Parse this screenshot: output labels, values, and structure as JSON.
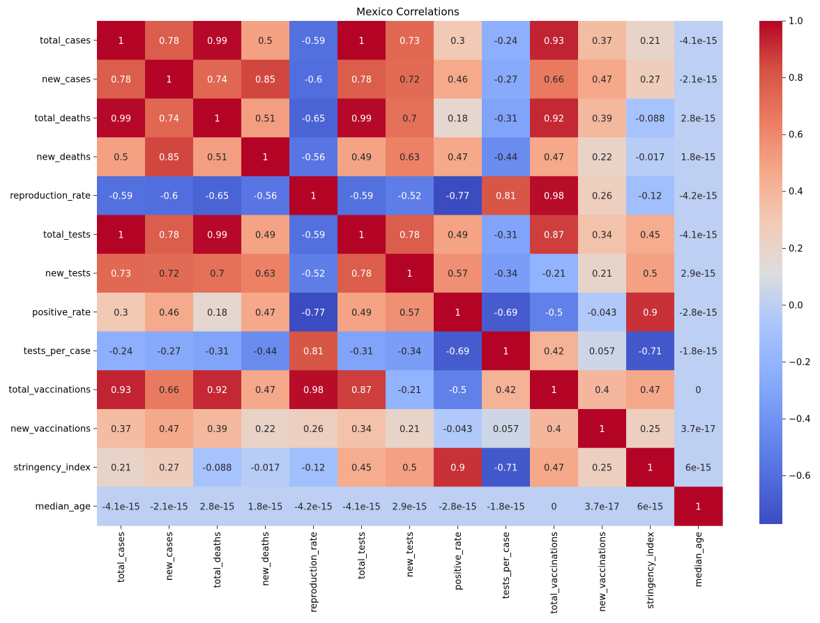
{
  "chart_data": {
    "type": "heatmap",
    "title": "Mexico Correlations",
    "labels": [
      "total_cases",
      "new_cases",
      "total_deaths",
      "new_deaths",
      "reproduction_rate",
      "total_tests",
      "new_tests",
      "positive_rate",
      "tests_per_case",
      "total_vaccinations",
      "new_vaccinations",
      "stringency_index",
      "median_age"
    ],
    "values": [
      [
        1,
        0.78,
        0.99,
        0.5,
        -0.59,
        1,
        0.73,
        0.3,
        -0.24,
        0.93,
        0.37,
        0.21,
        -4.1e-15
      ],
      [
        0.78,
        1,
        0.74,
        0.85,
        -0.6,
        0.78,
        0.72,
        0.46,
        -0.27,
        0.66,
        0.47,
        0.27,
        -2.1e-15
      ],
      [
        0.99,
        0.74,
        1,
        0.51,
        -0.65,
        0.99,
        0.7,
        0.18,
        -0.31,
        0.92,
        0.39,
        -0.088,
        2.8e-15
      ],
      [
        0.5,
        0.85,
        0.51,
        1,
        -0.56,
        0.49,
        0.63,
        0.47,
        -0.44,
        0.47,
        0.22,
        -0.017,
        1.8e-15
      ],
      [
        -0.59,
        -0.6,
        -0.65,
        -0.56,
        1,
        -0.59,
        -0.52,
        -0.77,
        0.81,
        0.98,
        0.26,
        -0.12,
        -4.2e-15
      ],
      [
        1,
        0.78,
        0.99,
        0.49,
        -0.59,
        1,
        0.78,
        0.49,
        -0.31,
        0.87,
        0.34,
        0.45,
        -4.1e-15
      ],
      [
        0.73,
        0.72,
        0.7,
        0.63,
        -0.52,
        0.78,
        1,
        0.57,
        -0.34,
        -0.21,
        0.21,
        0.5,
        2.9e-15
      ],
      [
        0.3,
        0.46,
        0.18,
        0.47,
        -0.77,
        0.49,
        0.57,
        1,
        -0.69,
        -0.5,
        -0.043,
        0.9,
        -2.8e-15
      ],
      [
        -0.24,
        -0.27,
        -0.31,
        -0.44,
        0.81,
        -0.31,
        -0.34,
        -0.69,
        1,
        0.42,
        0.057,
        -0.71,
        -1.8e-15
      ],
      [
        0.93,
        0.66,
        0.92,
        0.47,
        0.98,
        0.87,
        -0.21,
        -0.5,
        0.42,
        1,
        0.4,
        0.47,
        0
      ],
      [
        0.37,
        0.47,
        0.39,
        0.22,
        0.26,
        0.34,
        0.21,
        -0.043,
        0.057,
        0.4,
        1,
        0.25,
        3.7e-17
      ],
      [
        0.21,
        0.27,
        -0.088,
        -0.017,
        -0.12,
        0.45,
        0.5,
        0.9,
        -0.71,
        0.47,
        0.25,
        1,
        6e-15
      ],
      [
        -4.1e-15,
        -2.1e-15,
        2.8e-15,
        1.8e-15,
        -4.2e-15,
        -4.1e-15,
        2.9e-15,
        -2.8e-15,
        -1.8e-15,
        0,
        3.7e-17,
        6e-15,
        1
      ]
    ],
    "annotations": [
      [
        "1",
        "0.78",
        "0.99",
        "0.5",
        "-0.59",
        "1",
        "0.73",
        "0.3",
        "-0.24",
        "0.93",
        "0.37",
        "0.21",
        "-4.1e-15"
      ],
      [
        "0.78",
        "1",
        "0.74",
        "0.85",
        "-0.6",
        "0.78",
        "0.72",
        "0.46",
        "-0.27",
        "0.66",
        "0.47",
        "0.27",
        "-2.1e-15"
      ],
      [
        "0.99",
        "0.74",
        "1",
        "0.51",
        "-0.65",
        "0.99",
        "0.7",
        "0.18",
        "-0.31",
        "0.92",
        "0.39",
        "-0.088",
        "2.8e-15"
      ],
      [
        "0.5",
        "0.85",
        "0.51",
        "1",
        "-0.56",
        "0.49",
        "0.63",
        "0.47",
        "-0.44",
        "0.47",
        "0.22",
        "-0.017",
        "1.8e-15"
      ],
      [
        "-0.59",
        "-0.6",
        "-0.65",
        "-0.56",
        "1",
        "-0.59",
        "-0.52",
        "-0.77",
        "0.81",
        "0.98",
        "0.26",
        "-0.12",
        "-4.2e-15"
      ],
      [
        "1",
        "0.78",
        "0.99",
        "0.49",
        "-0.59",
        "1",
        "0.78",
        "0.49",
        "-0.31",
        "0.87",
        "0.34",
        "0.45",
        "-4.1e-15"
      ],
      [
        "0.73",
        "0.72",
        "0.7",
        "0.63",
        "-0.52",
        "0.78",
        "1",
        "0.57",
        "-0.34",
        "-0.21",
        "0.21",
        "0.5",
        "2.9e-15"
      ],
      [
        "0.3",
        "0.46",
        "0.18",
        "0.47",
        "-0.77",
        "0.49",
        "0.57",
        "1",
        "-0.69",
        "-0.5",
        "-0.043",
        "0.9",
        "-2.8e-15"
      ],
      [
        "-0.24",
        "-0.27",
        "-0.31",
        "-0.44",
        "0.81",
        "-0.31",
        "-0.34",
        "-0.69",
        "1",
        "0.42",
        "0.057",
        "-0.71",
        "-1.8e-15"
      ],
      [
        "0.93",
        "0.66",
        "0.92",
        "0.47",
        "0.98",
        "0.87",
        "-0.21",
        "-0.5",
        "0.42",
        "1",
        "0.4",
        "0.47",
        "0"
      ],
      [
        "0.37",
        "0.47",
        "0.39",
        "0.22",
        "0.26",
        "0.34",
        "0.21",
        "-0.043",
        "0.057",
        "0.4",
        "1",
        "0.25",
        "3.7e-17"
      ],
      [
        "0.21",
        "0.27",
        "-0.088",
        "-0.017",
        "-0.12",
        "0.45",
        "0.5",
        "0.9",
        "-0.71",
        "0.47",
        "0.25",
        "1",
        "6e-15"
      ],
      [
        "-4.1e-15",
        "-2.1e-15",
        "2.8e-15",
        "1.8e-15",
        "-4.2e-15",
        "-4.1e-15",
        "2.9e-15",
        "-2.8e-15",
        "-1.8e-15",
        "0",
        "3.7e-17",
        "6e-15",
        "1"
      ]
    ],
    "colormap": "coolwarm",
    "vmin": -0.77,
    "vmax": 1.0,
    "colorbar_ticks": [
      1.0,
      0.8,
      0.6,
      0.4,
      0.2,
      0.0,
      -0.2,
      -0.4,
      -0.6
    ],
    "colorbar_tick_labels": [
      "1.0",
      "0.8",
      "0.6",
      "0.4",
      "0.2",
      "0.0",
      "−0.2",
      "−0.4",
      "−0.6"
    ],
    "legend": "colorbar-right",
    "grid": false
  }
}
